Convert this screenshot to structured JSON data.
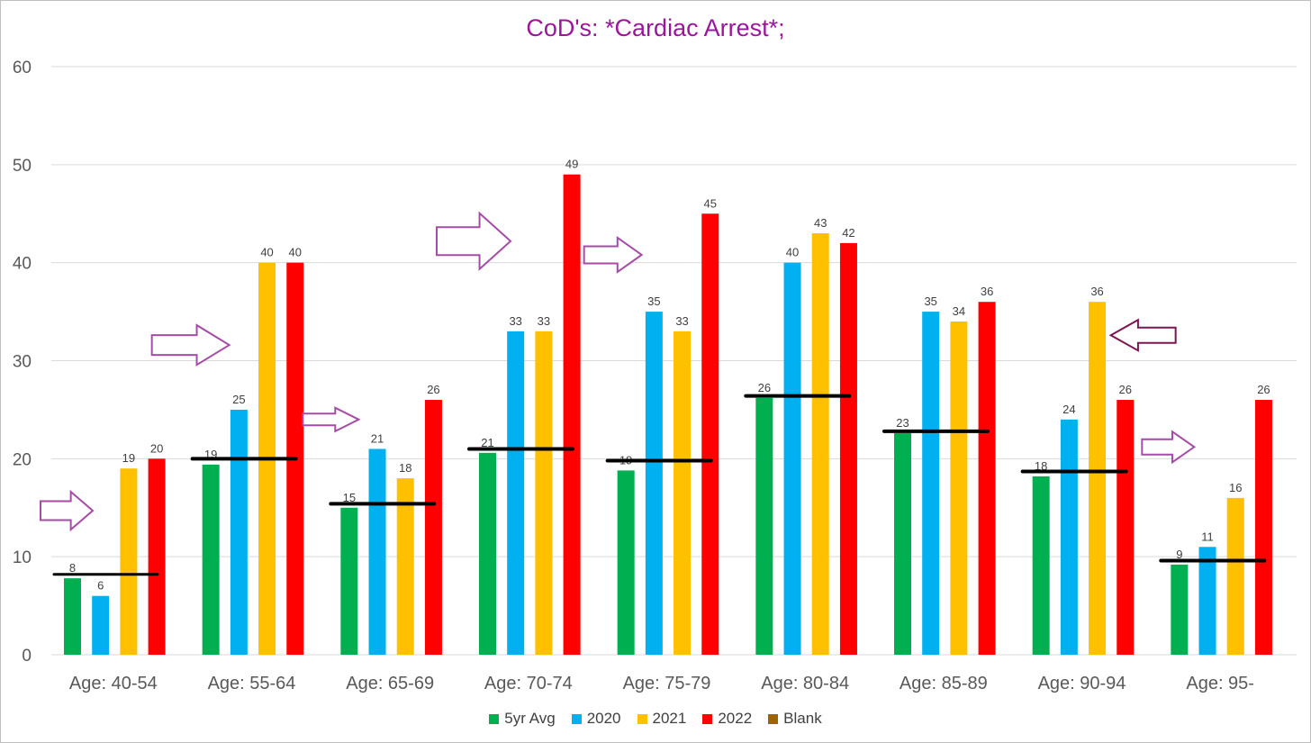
{
  "chart_data": {
    "type": "bar",
    "title": "CoD's: *Cardiac Arrest*;",
    "xlabel": "",
    "ylabel": "",
    "ylim": [
      0,
      60
    ],
    "yticks": [
      0,
      10,
      20,
      30,
      40,
      50,
      60
    ],
    "grid": true,
    "legend_position": "bottom",
    "categories": [
      "Age: 40-54",
      "Age: 55-64",
      "Age: 65-69",
      "Age: 70-74",
      "Age: 75-79",
      "Age: 80-84",
      "Age: 85-89",
      "Age: 90-94",
      "Age: 95-"
    ],
    "series": [
      {
        "name": "5yr Avg",
        "color": "#00b050",
        "values": [
          7.8,
          19.4,
          15.0,
          20.6,
          18.8,
          26.2,
          22.6,
          18.2,
          9.2
        ],
        "labels": [
          "8",
          "19",
          "15",
          "21",
          "19",
          "26",
          "23",
          "18",
          "9"
        ]
      },
      {
        "name": "2020",
        "color": "#00b0f0",
        "values": [
          6,
          25,
          21,
          33,
          35,
          40,
          35,
          24,
          11
        ],
        "labels": [
          "6",
          "25",
          "21",
          "33",
          "35",
          "40",
          "35",
          "24",
          "11"
        ]
      },
      {
        "name": "2021",
        "color": "#ffc000",
        "values": [
          19,
          40,
          18,
          33,
          33,
          43,
          34,
          36,
          16
        ],
        "labels": [
          "19",
          "40",
          "18",
          "33",
          "33",
          "43",
          "34",
          "36",
          "16"
        ]
      },
      {
        "name": "2022",
        "color": "#ff0000",
        "values": [
          20,
          40,
          26,
          49,
          45,
          42,
          36,
          26,
          26
        ],
        "labels": [
          "20",
          "40",
          "26",
          "49",
          "45",
          "42",
          "36",
          "26",
          "26"
        ]
      },
      {
        "name": "Blank",
        "color": "#9c6500",
        "values": [
          null,
          null,
          null,
          null,
          null,
          null,
          null,
          null,
          null
        ],
        "labels": []
      }
    ],
    "reference_lines": {
      "name": "5yr Avg level",
      "color": "#000000",
      "values": [
        8.2,
        20.0,
        15.4,
        21.0,
        19.8,
        26.4,
        22.8,
        18.7,
        9.6
      ]
    },
    "annotations": [
      {
        "type": "arrow",
        "direction": "right",
        "category_index": 0,
        "y": 14.7,
        "color": "#a64ca6"
      },
      {
        "type": "arrow",
        "direction": "right",
        "category_index": 1,
        "y": 31.6,
        "color": "#a64ca6"
      },
      {
        "type": "arrow",
        "direction": "right",
        "category_index": 2,
        "y": 24.0,
        "color": "#a64ca6"
      },
      {
        "type": "arrow",
        "direction": "right",
        "category_index": 3,
        "y": 42.2,
        "color": "#a64ca6"
      },
      {
        "type": "arrow",
        "direction": "right",
        "category_index": 4,
        "y": 40.8,
        "color": "#a64ca6"
      },
      {
        "type": "arrow",
        "direction": "left",
        "category_index": 7,
        "y": 32.6,
        "color": "#7b1650"
      },
      {
        "type": "arrow",
        "direction": "right",
        "category_index": 8,
        "y": 21.2,
        "color": "#a64ca6"
      }
    ]
  }
}
